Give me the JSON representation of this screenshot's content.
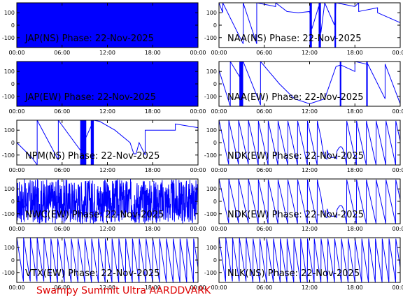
{
  "footer": {
    "text": "Swampy Summit Ultra AARDDVARK",
    "color": "#dd0000"
  },
  "trace_color": "#0000ff",
  "chart_data": [
    {
      "title": "JAP(NS) Phase: 22-Nov-2025",
      "type": "line",
      "ylim": [
        -180,
        180
      ],
      "xlim": [
        0,
        24
      ],
      "y_ticks": [
        "100",
        "0",
        "-100"
      ],
      "x_ticks": [
        "00:00",
        "06:00",
        "12:00",
        "18:00",
        "00:00"
      ],
      "fill": [
        [
          0,
          24
        ]
      ],
      "series": []
    },
    {
      "title": "NAA(NS) Phase: 22-Nov-2025",
      "type": "line",
      "ylim": [
        -180,
        180
      ],
      "xlim": [
        0,
        24
      ],
      "y_ticks": [
        "100",
        "0",
        "-100"
      ],
      "x_ticks": [
        "00:00",
        "06:00",
        "12:00",
        "18:00",
        "00:00"
      ],
      "fill": [
        [
          12.0,
          12.3
        ],
        [
          13.2,
          13.5
        ],
        [
          15.3,
          15.5
        ]
      ],
      "series": [
        {
          "x": [
            0,
            0.5,
            0.5,
            3.2,
            3.2,
            5.0,
            5.0,
            7.5,
            7.5,
            9.0,
            10.5,
            12.0,
            12.3,
            13.2,
            13.5,
            14.0,
            15.3,
            15.5,
            18.0,
            18.5,
            18.5,
            21.0,
            21.0,
            24.0
          ],
          "y": [
            180,
            100,
            180,
            -150,
            180,
            -150,
            180,
            150,
            180,
            110,
            100,
            110,
            -30,
            150,
            -60,
            180,
            0,
            180,
            150,
            180,
            110,
            140,
            100,
            20
          ]
        }
      ]
    },
    {
      "title": "JAP(EW) Phase: 22-Nov-2025",
      "type": "line",
      "ylim": [
        -180,
        180
      ],
      "xlim": [
        0,
        24
      ],
      "y_ticks": [
        "100",
        "0",
        "-100"
      ],
      "x_ticks": [
        "00:00",
        "06:00",
        "12:00",
        "18:00",
        "00:00"
      ],
      "fill": [
        [
          0,
          24
        ]
      ],
      "series": []
    },
    {
      "title": "NAA(EW) Phase: 22-Nov-2025",
      "type": "line",
      "ylim": [
        -180,
        180
      ],
      "xlim": [
        0,
        24
      ],
      "y_ticks": [
        "100",
        "0",
        "-100"
      ],
      "x_ticks": [
        "00:00",
        "06:00",
        "12:00",
        "18:00",
        "00:00"
      ],
      "fill": [
        [
          2.7,
          3.2
        ],
        [
          16.0,
          16.2
        ],
        [
          19.5,
          19.7
        ]
      ],
      "series": [
        {
          "x": [
            0,
            1.5,
            1.5,
            2.7,
            3.2,
            5.5,
            5.5,
            8.0,
            10.0,
            12.0,
            14.0,
            15.5,
            16.0,
            16.2,
            18.0,
            18.0,
            19.5,
            19.7,
            22.0,
            22.0,
            24.0
          ],
          "y": [
            110,
            -180,
            180,
            60,
            180,
            -170,
            180,
            0,
            -120,
            -160,
            -120,
            140,
            150,
            150,
            100,
            180,
            160,
            160,
            -120,
            160,
            -160
          ]
        }
      ]
    },
    {
      "title": "NPM(NS) Phase: 22-Nov-2025",
      "type": "line",
      "ylim": [
        -180,
        180
      ],
      "xlim": [
        0,
        24
      ],
      "y_ticks": [
        "100",
        "0",
        "-100"
      ],
      "x_ticks": [
        "00:00",
        "06:00",
        "12:00",
        "18:00",
        "00:00"
      ],
      "fill": [
        [
          8.4,
          9.2
        ],
        [
          9.8,
          10.2
        ]
      ],
      "series": [
        {
          "x": [
            0,
            2.0,
            2.7,
            2.7,
            5.5,
            5.5,
            8.4,
            10.2,
            11.0,
            13.0,
            15.0,
            15.5,
            15.8,
            16.2,
            17.0,
            17.0,
            19.0,
            21.0,
            21.0,
            24.0
          ],
          "y": [
            0,
            -120,
            -180,
            180,
            -140,
            180,
            -60,
            180,
            170,
            100,
            0,
            -90,
            -90,
            0,
            -100,
            100,
            100,
            100,
            150,
            120
          ]
        }
      ]
    },
    {
      "title": "NDK(EW) Phase: 22-Nov-2025",
      "type": "line",
      "ylim": [
        -180,
        180
      ],
      "xlim": [
        0,
        24
      ],
      "y_ticks": [
        "100",
        "0",
        "-100"
      ],
      "x_ticks": [
        "00:00",
        "06:00",
        "12:00",
        "18:00",
        "00:00"
      ],
      "fill": [],
      "series": [
        {
          "sawtooth": true,
          "period_hours": 1.3,
          "dip": [
            13.5,
            16.5,
            -120
          ],
          "ymin": -180,
          "ymax": 180
        }
      ]
    },
    {
      "title": "NWC(EW) Phase: 22-Nov-2025",
      "type": "line",
      "ylim": [
        -180,
        180
      ],
      "xlim": [
        0,
        24
      ],
      "y_ticks": [
        "100",
        "0",
        "-100"
      ],
      "x_ticks": [
        "00:00",
        "06:00",
        "12:00",
        "18:00",
        "00:00"
      ],
      "fill": [],
      "series": [
        {
          "noise": true,
          "ymin": -180,
          "ymax": 180
        }
      ]
    },
    {
      "title": "NDK(EW) Phase: 22-Nov-2025",
      "type": "line",
      "ylim": [
        -180,
        180
      ],
      "xlim": [
        0,
        24
      ],
      "y_ticks": [
        "100",
        "0",
        "-100"
      ],
      "x_ticks": [
        "00:00",
        "06:00",
        "12:00",
        "18:00",
        "00:00"
      ],
      "fill": [],
      "series": [
        {
          "sawtooth": true,
          "period_hours": 1.3,
          "dip": [
            13.5,
            16.5,
            -120
          ],
          "ymin": -180,
          "ymax": 180
        }
      ]
    },
    {
      "title": "VTX(EW) Phase: 22-Nov-2025",
      "type": "line",
      "ylim": [
        -180,
        180
      ],
      "xlim": [
        0,
        24
      ],
      "y_ticks": [
        "100",
        "0",
        "-100"
      ],
      "x_ticks": [
        "00:00",
        "06:00",
        "12:00",
        "18:00",
        "00:00"
      ],
      "fill": [],
      "series": [
        {
          "sawtooth": true,
          "period_hours": 0.9,
          "ymin": -180,
          "ymax": 180
        }
      ]
    },
    {
      "title": "NLK(NS) Phase: 22-Nov-2025",
      "type": "line",
      "ylim": [
        -180,
        180
      ],
      "xlim": [
        0,
        24
      ],
      "y_ticks": [
        "100",
        "0",
        "-100"
      ],
      "x_ticks": [
        "00:00",
        "06:00",
        "12:00",
        "18:00",
        "00:00"
      ],
      "fill": [],
      "series": [
        {
          "sawtooth": true,
          "period_hours": 0.9,
          "ymin": -180,
          "ymax": 180
        }
      ]
    }
  ]
}
